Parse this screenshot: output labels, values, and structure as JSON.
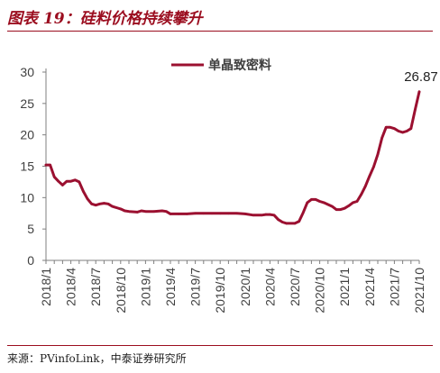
{
  "figure": {
    "title": "图表 19：硅料价格持续攀升",
    "source": "来源：PVinfoLink，中泰证券研究所"
  },
  "colors": {
    "accent": "#9b0d1f",
    "series": "#9b1030",
    "axis": "#7f7f7f",
    "text": "#404040"
  },
  "chart_data": {
    "type": "line",
    "title": "",
    "xlabel": "",
    "ylabel": "",
    "ylim": [
      0,
      30
    ],
    "yticks": [
      0,
      5,
      10,
      15,
      20,
      25,
      30
    ],
    "grid": false,
    "legend_position": "top-center",
    "x_tick_labels": [
      "2018/1",
      "2018/4",
      "2018/7",
      "2018/10",
      "2019/1",
      "2019/4",
      "2019/7",
      "2019/10",
      "2020/1",
      "2020/4",
      "2020/7",
      "2020/10",
      "2021/1",
      "2021/4",
      "2021/7",
      "2021/10"
    ],
    "x_range": [
      "2018/1",
      "2021/10"
    ],
    "series": [
      {
        "name": "单晶致密料",
        "color": "#9b1030",
        "last_value_label": "26.87",
        "points": [
          [
            "2018/1",
            15.2
          ],
          [
            "2018/1.5",
            15.2
          ],
          [
            "2018/2",
            13.3
          ],
          [
            "2018/2.5",
            12.6
          ],
          [
            "2018/3",
            12.0
          ],
          [
            "2018/3.5",
            12.6
          ],
          [
            "2018/4",
            12.6
          ],
          [
            "2018/4.5",
            12.8
          ],
          [
            "2018/5",
            12.5
          ],
          [
            "2018/5.5",
            11.0
          ],
          [
            "2018/6",
            9.8
          ],
          [
            "2018/6.5",
            9.0
          ],
          [
            "2018/7",
            8.8
          ],
          [
            "2018/7.5",
            9.0
          ],
          [
            "2018/8",
            9.1
          ],
          [
            "2018/8.5",
            9.0
          ],
          [
            "2018/9",
            8.6
          ],
          [
            "2018/9.5",
            8.4
          ],
          [
            "2018/10",
            8.2
          ],
          [
            "2018/10.5",
            7.9
          ],
          [
            "2018/11",
            7.8
          ],
          [
            "2018/12",
            7.7
          ],
          [
            "2018/12.5",
            7.9
          ],
          [
            "2019/1",
            7.8
          ],
          [
            "2019/2",
            7.8
          ],
          [
            "2019/3",
            7.9
          ],
          [
            "2019/3.5",
            7.8
          ],
          [
            "2019/4",
            7.4
          ],
          [
            "2019/5",
            7.4
          ],
          [
            "2019/6",
            7.4
          ],
          [
            "2019/7",
            7.5
          ],
          [
            "2019/8",
            7.5
          ],
          [
            "2019/9",
            7.5
          ],
          [
            "2019/10",
            7.5
          ],
          [
            "2019/11",
            7.5
          ],
          [
            "2019/12",
            7.5
          ],
          [
            "2020/1",
            7.4
          ],
          [
            "2020/2",
            7.2
          ],
          [
            "2020/3",
            7.2
          ],
          [
            "2020/3.5",
            7.3
          ],
          [
            "2020/4",
            7.3
          ],
          [
            "2020/4.5",
            7.2
          ],
          [
            "2020/5",
            6.5
          ],
          [
            "2020/5.5",
            6.1
          ],
          [
            "2020/6",
            5.9
          ],
          [
            "2020/7",
            5.9
          ],
          [
            "2020/7.5",
            6.2
          ],
          [
            "2020/8",
            7.6
          ],
          [
            "2020/8.5",
            9.2
          ],
          [
            "2020/9",
            9.7
          ],
          [
            "2020/9.5",
            9.7
          ],
          [
            "2020/10",
            9.4
          ],
          [
            "2020/10.5",
            9.2
          ],
          [
            "2020/11",
            8.9
          ],
          [
            "2020/11.5",
            8.6
          ],
          [
            "2020/12",
            8.1
          ],
          [
            "2020/12.5",
            8.1
          ],
          [
            "2021/1",
            8.3
          ],
          [
            "2021/1.5",
            8.7
          ],
          [
            "2021/2",
            9.2
          ],
          [
            "2021/2.5",
            9.4
          ],
          [
            "2021/3",
            10.5
          ],
          [
            "2021/3.5",
            11.8
          ],
          [
            "2021/4",
            13.4
          ],
          [
            "2021/4.5",
            14.9
          ],
          [
            "2021/5",
            16.9
          ],
          [
            "2021/5.5",
            19.5
          ],
          [
            "2021/6",
            21.2
          ],
          [
            "2021/6.5",
            21.2
          ],
          [
            "2021/7",
            21.0
          ],
          [
            "2021/7.5",
            20.6
          ],
          [
            "2021/8",
            20.4
          ],
          [
            "2021/8.5",
            20.6
          ],
          [
            "2021/9",
            21.0
          ],
          [
            "2021/9.5",
            24.0
          ],
          [
            "2021/10",
            26.87
          ]
        ]
      }
    ]
  }
}
